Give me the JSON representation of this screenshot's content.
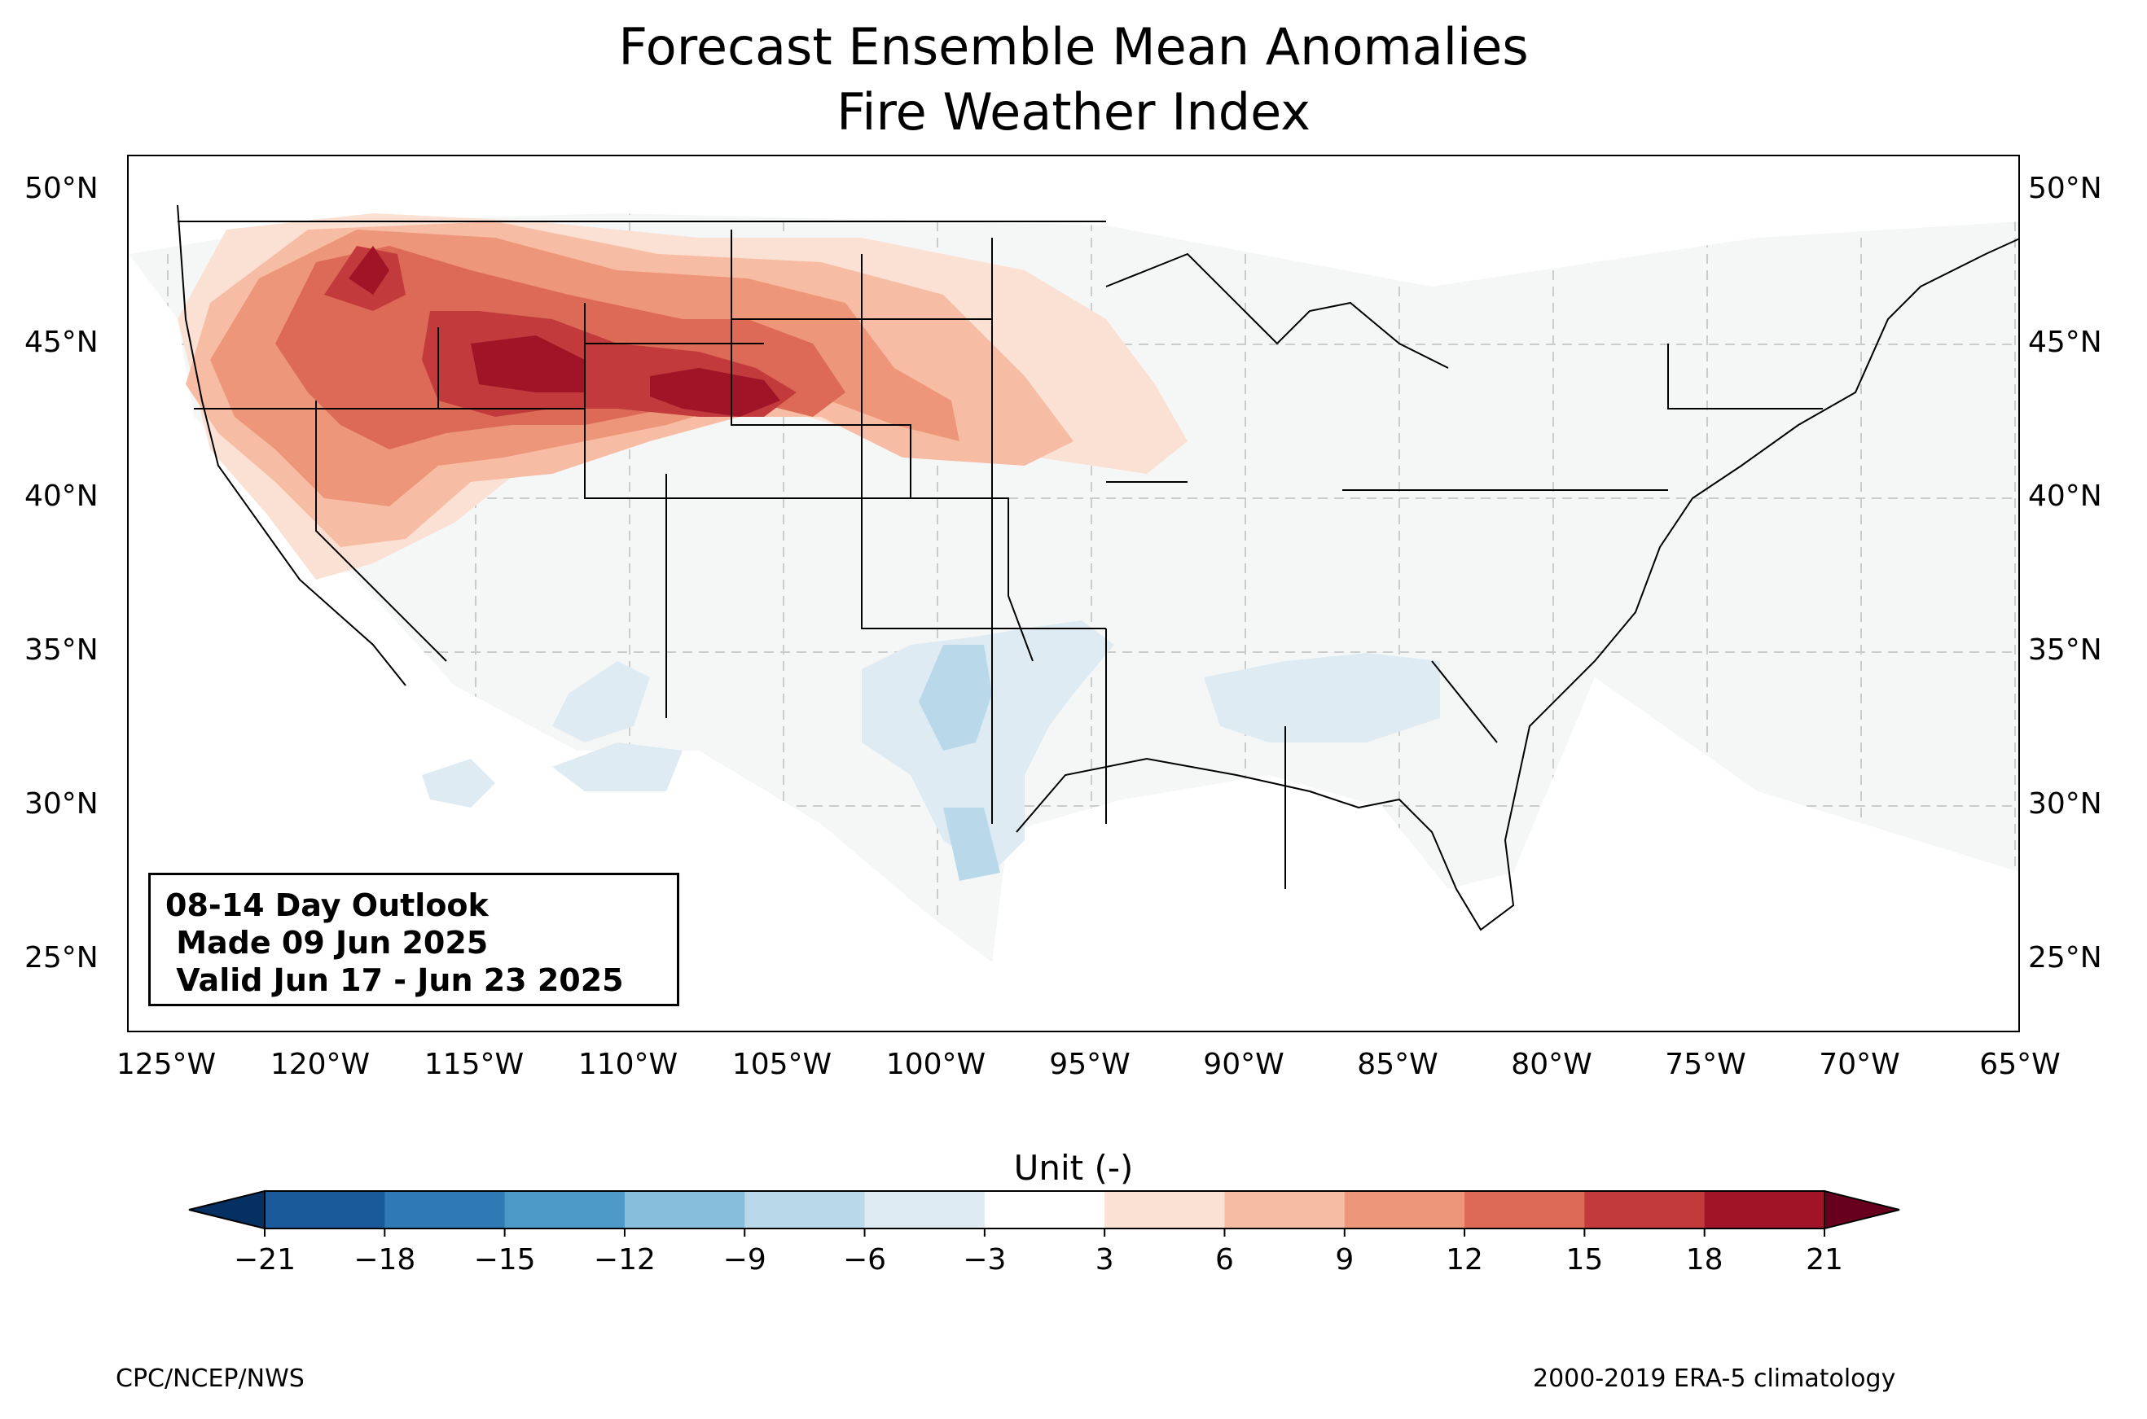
{
  "title_line1": "Forecast Ensemble Mean Anomalies",
  "title_line2": "Fire Weather Index",
  "map": {
    "lat_labels": [
      "50°N",
      "45°N",
      "40°N",
      "35°N",
      "30°N",
      "25°N"
    ],
    "lon_labels": [
      "125°W",
      "120°W",
      "115°W",
      "110°W",
      "105°W",
      "100°W",
      "95°W",
      "90°W",
      "85°W",
      "80°W",
      "75°W",
      "70°W",
      "65°W"
    ],
    "land_color": "#f5f7f7"
  },
  "outlook": {
    "line1": "08-14 Day Outlook",
    "line2": " Made 09 Jun 2025",
    "line3": " Valid Jun 17 - Jun 23 2025"
  },
  "colorbar": {
    "title": "Unit (-)",
    "ticks": [
      "−21",
      "−18",
      "−15",
      "−12",
      "−9",
      "−6",
      "−3",
      "3",
      "6",
      "9",
      "12",
      "15",
      "18",
      "21"
    ],
    "colors": [
      "#053061",
      "#1b5a9a",
      "#2f79b5",
      "#4c99c8",
      "#87bedc",
      "#b9d8ea",
      "#deebf3",
      "#ffffff",
      "#fbe1d3",
      "#f7bda4",
      "#ee9679",
      "#dc6a56",
      "#c23a3b",
      "#a11327",
      "#67001f"
    ]
  },
  "footer": {
    "left": "CPC/NCEP/NWS",
    "right": "2000-2019 ERA-5 climatology"
  }
}
